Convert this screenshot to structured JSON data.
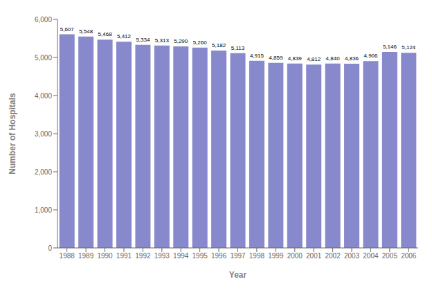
{
  "chart_data": {
    "type": "bar",
    "categories": [
      "1988",
      "1989",
      "1990",
      "1991",
      "1992",
      "1993",
      "1994",
      "1995",
      "1996",
      "1997",
      "1998",
      "1999",
      "2000",
      "2001",
      "2002",
      "2003",
      "2004",
      "2005",
      "2006"
    ],
    "values": [
      5607,
      5548,
      5468,
      5412,
      5334,
      5313,
      5290,
      5260,
      5182,
      5113,
      4915,
      4859,
      4839,
      4812,
      4840,
      4836,
      4906,
      5146,
      5124
    ],
    "value_labels": [
      "5,607",
      "5,548",
      "5,468",
      "5,412",
      "5,334",
      "5,313",
      "5,290",
      "5,260",
      "5,182",
      "5,113",
      "4,915",
      "4,859",
      "4,839",
      "4,812",
      "4,840",
      "4,836",
      "4,906",
      "5,146",
      "5,124"
    ],
    "color": "#8888CC",
    "xlabel": "Year",
    "ylabel": "Number of Hospitals",
    "ylim": [
      0,
      6000
    ],
    "yticks": [
      0,
      {
        "value": 1000,
        "label": "1,000"
      },
      {
        "value": 2000,
        "label": "2,000"
      },
      {
        "value": 3000,
        "label": "3,000"
      },
      {
        "value": 4000,
        "label": "4,000"
      },
      {
        "value": 5000,
        "label": "5,000"
      },
      {
        "value": 6000,
        "label": "6,000"
      }
    ],
    "grid": false,
    "data_labels": true
  }
}
